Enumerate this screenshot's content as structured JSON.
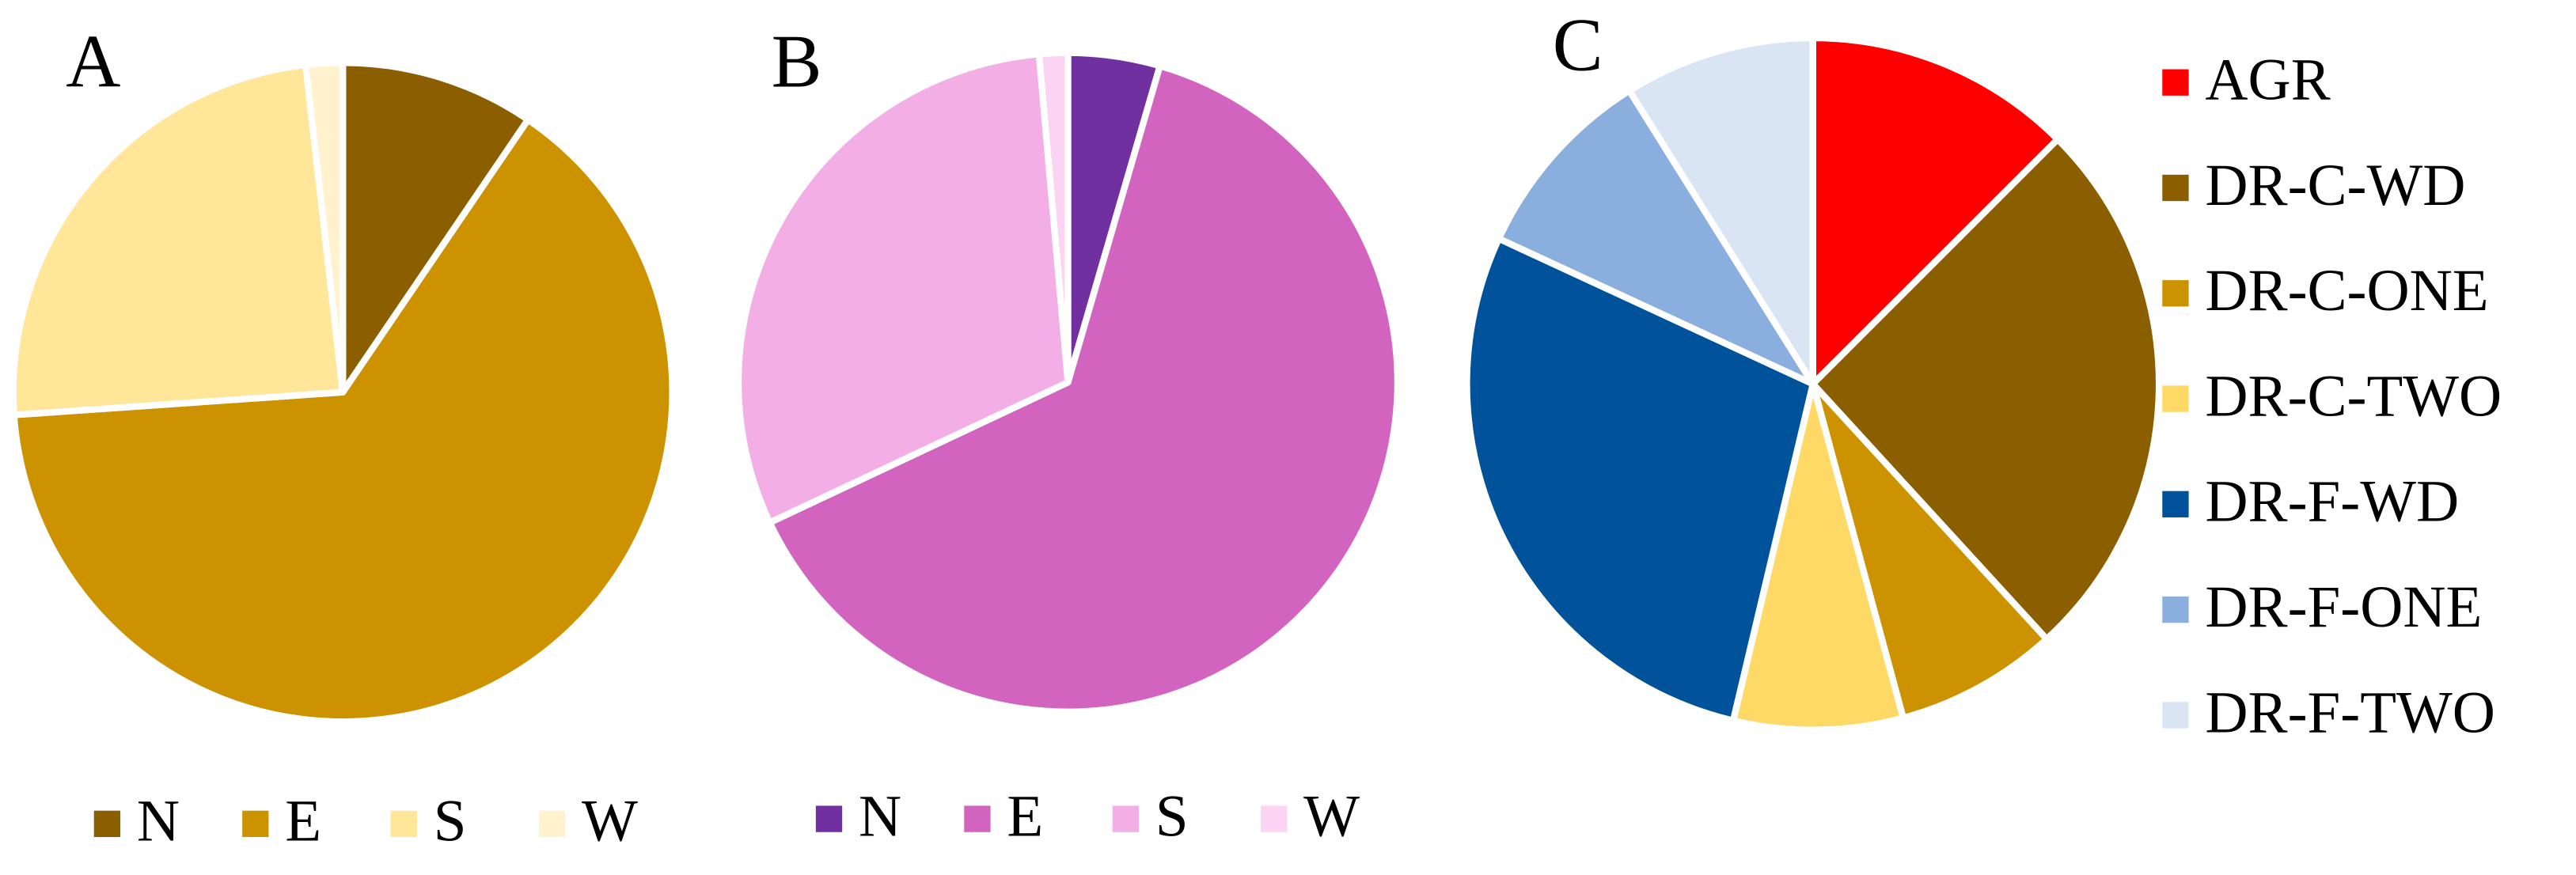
{
  "chart_data": [
    {
      "type": "pie",
      "title": "A",
      "legend": "bottom",
      "categories": [
        "N",
        "E",
        "S",
        "W"
      ],
      "values": [
        9.5,
        64.4,
        24.3,
        1.8
      ],
      "colors": [
        "#8b5e00",
        "#cc9200",
        "#ffe699",
        "#fff2cc"
      ]
    },
    {
      "type": "pie",
      "title": "B",
      "legend": "bottom",
      "categories": [
        "N",
        "E",
        "S",
        "W"
      ],
      "values": [
        4.5,
        63.5,
        30.6,
        1.4
      ],
      "colors": [
        "#7030a0",
        "#d264c0",
        "#f4aee6",
        "#fad4f2"
      ]
    },
    {
      "type": "pie",
      "title": "C",
      "legend": "right",
      "categories": [
        "AGR",
        "DR-C-WD",
        "DR-C-ONE",
        "DR-C-TWO",
        "DR-F-WD",
        "DR-F-ONE",
        "DR-F-TWO"
      ],
      "values": [
        12.5,
        25.7,
        7.6,
        7.9,
        28.2,
        9.2,
        8.9
      ],
      "colors": [
        "#ff0000",
        "#8b5e00",
        "#cc9200",
        "#ffd966",
        "#00539b",
        "#8aaede",
        "#dae5f4"
      ]
    }
  ]
}
